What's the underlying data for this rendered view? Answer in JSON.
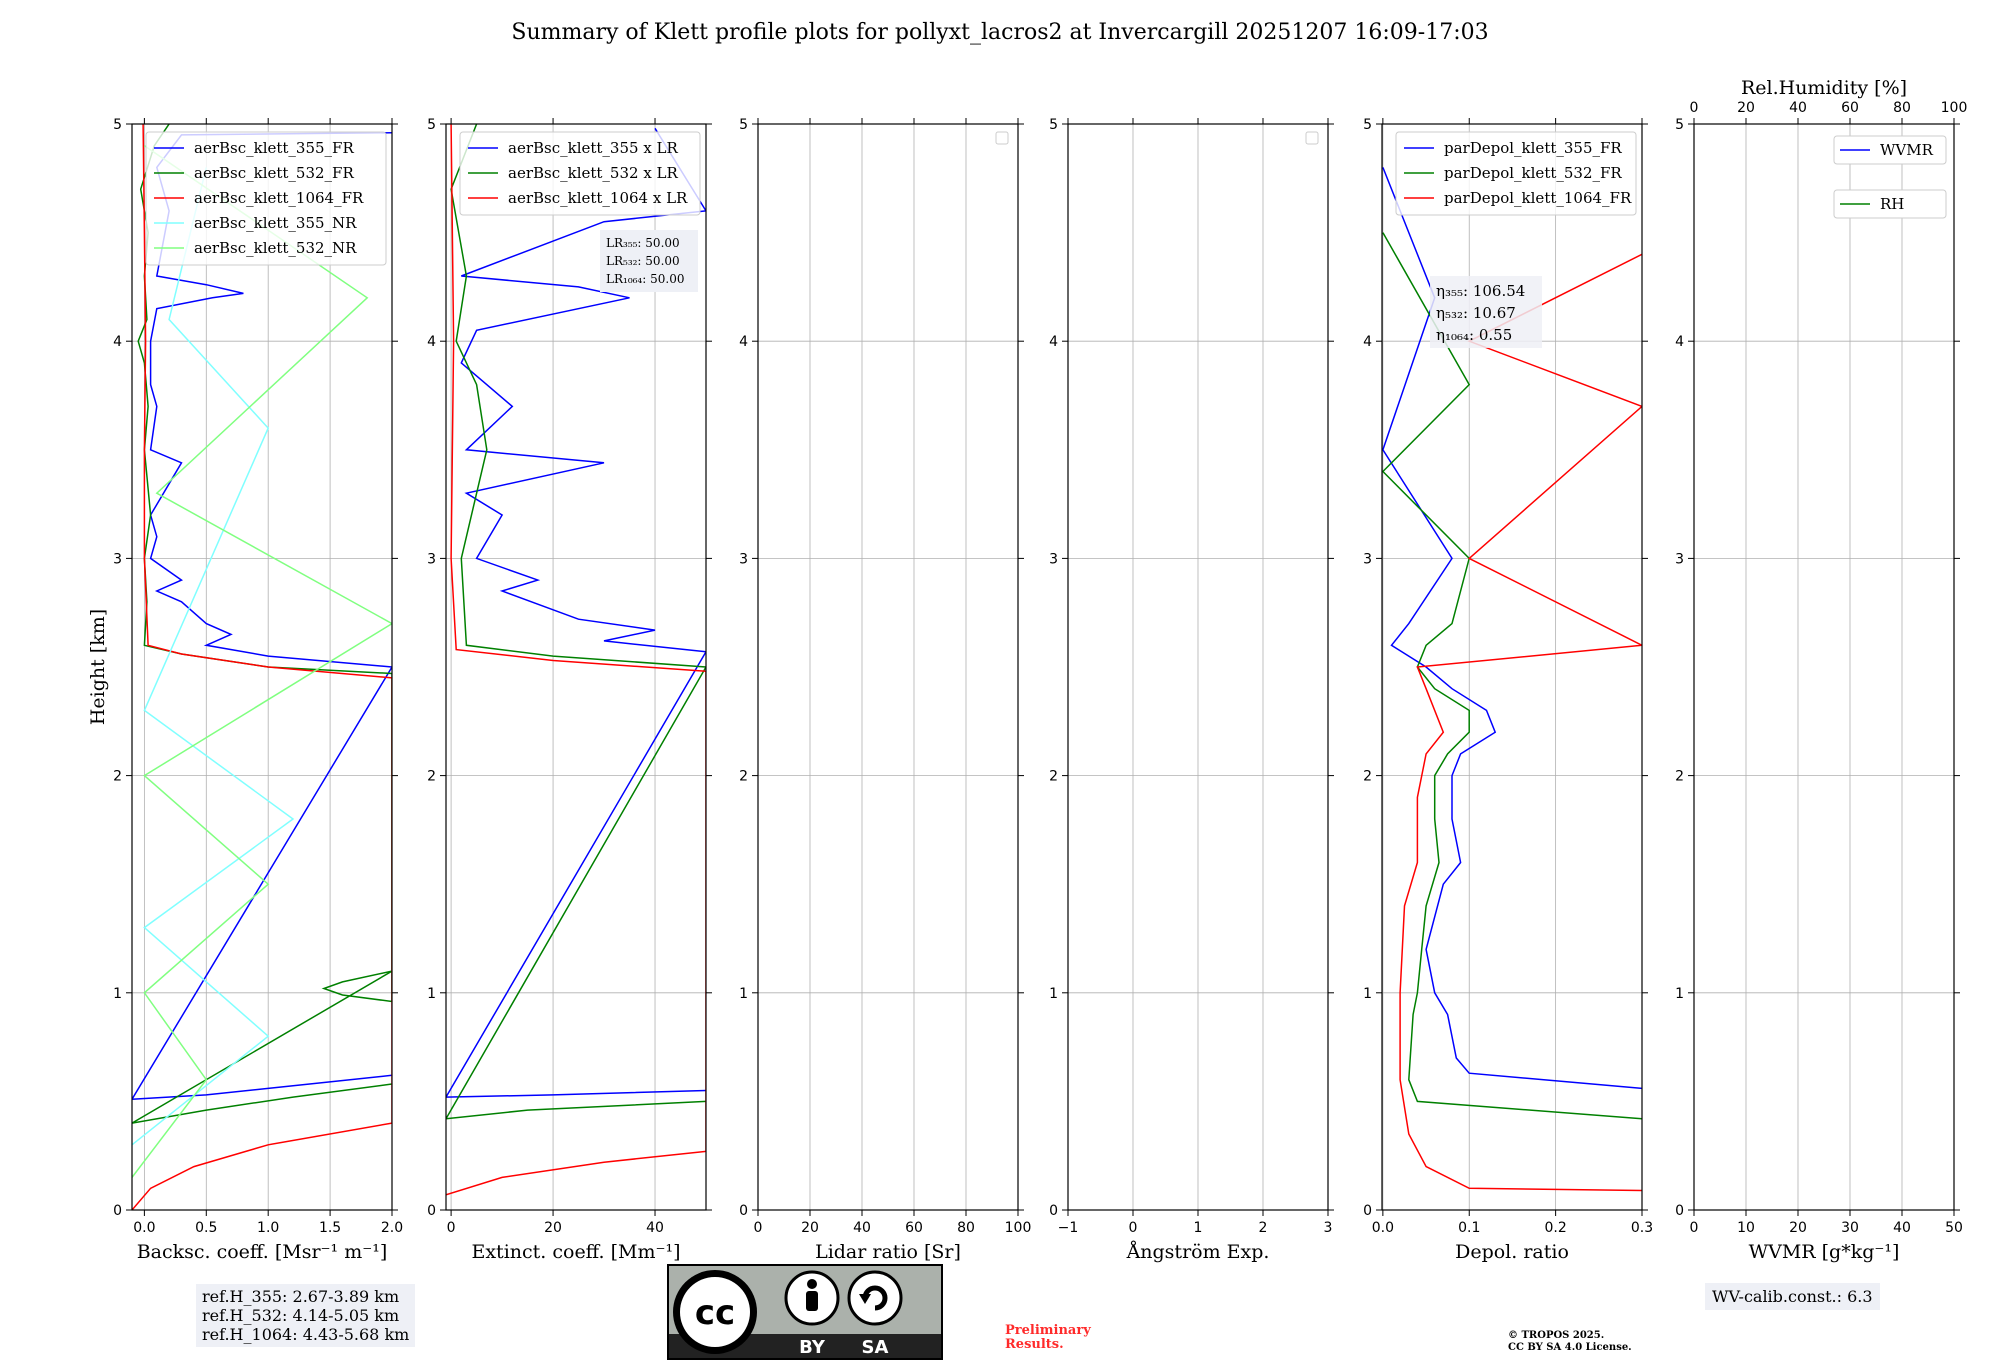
{
  "title": "Summary of Klett profile plots for pollyxt_lacros2 at Invercargill 20251207 16:09-17:03",
  "chart_data": [
    {
      "type": "line",
      "id": "backscatter",
      "xlabel": "Backsc. coeff. [Msr⁻¹ m⁻¹]",
      "ylabel": "Height [km]",
      "xlim": [
        -0.1,
        2.0
      ],
      "ylim": [
        0,
        5
      ],
      "xticks": [
        "0.0",
        "0.5",
        "1.0",
        "1.5",
        "2.0"
      ],
      "xtick_values": [
        0,
        0.5,
        1.0,
        1.5,
        2.0
      ],
      "yticks": [
        "0",
        "1",
        "2",
        "3",
        "4",
        "5"
      ],
      "grid": true,
      "legend": [
        "aerBsc_klett_355_FR",
        "aerBsc_klett_532_FR",
        "aerBsc_klett_1064_FR",
        "aerBsc_klett_355_NR",
        "aerBsc_klett_532_NR"
      ],
      "legend_colors": [
        "#0000ff",
        "#008000",
        "#ff0000",
        "#80ffff",
        "#80ff80"
      ],
      "legend_placement": "top-right",
      "series": [
        {
          "name": "aerBsc_klett_355_FR",
          "color": "#0000ff",
          "points": [
            [
              2.0,
              0.62
            ],
            [
              1.0,
              0.56
            ],
            [
              0.5,
              0.53
            ],
            [
              -0.1,
              0.51
            ],
            [
              2.0,
              2.5
            ],
            [
              1.0,
              2.55
            ],
            [
              0.5,
              2.6
            ],
            [
              0.7,
              2.65
            ],
            [
              0.5,
              2.7
            ],
            [
              0.3,
              2.8
            ],
            [
              0.1,
              2.85
            ],
            [
              0.3,
              2.9
            ],
            [
              0.05,
              3.0
            ],
            [
              0.1,
              3.1
            ],
            [
              0.05,
              3.2
            ],
            [
              0.3,
              3.44
            ],
            [
              0.05,
              3.5
            ],
            [
              0.1,
              3.7
            ],
            [
              0.05,
              3.8
            ],
            [
              0.05,
              4.0
            ],
            [
              0.1,
              4.15
            ],
            [
              0.55,
              4.2
            ],
            [
              0.8,
              4.22
            ],
            [
              0.5,
              4.26
            ],
            [
              0.1,
              4.3
            ],
            [
              0.2,
              4.6
            ],
            [
              0.1,
              4.8
            ],
            [
              0.3,
              4.95
            ],
            [
              2.0,
              4.96
            ]
          ]
        },
        {
          "name": "aerBsc_klett_532_FR",
          "color": "#008000",
          "points": [
            [
              2.0,
              0.58
            ],
            [
              1.2,
              0.52
            ],
            [
              0.5,
              0.46
            ],
            [
              -0.1,
              0.4
            ],
            [
              2.0,
              1.1
            ],
            [
              1.6,
              1.05
            ],
            [
              1.45,
              1.02
            ],
            [
              1.6,
              0.99
            ],
            [
              2.0,
              0.96
            ],
            [
              2.0,
              2.47
            ],
            [
              1.0,
              2.5
            ],
            [
              0.3,
              2.56
            ],
            [
              0.0,
              2.6
            ],
            [
              0.02,
              2.8
            ],
            [
              0.0,
              3.0
            ],
            [
              0.05,
              3.2
            ],
            [
              0.0,
              3.5
            ],
            [
              0.03,
              3.7
            ],
            [
              0.0,
              3.9
            ],
            [
              -0.05,
              4.0
            ],
            [
              0.02,
              4.1
            ],
            [
              0.0,
              4.3
            ],
            [
              0.03,
              4.5
            ],
            [
              -0.03,
              4.7
            ],
            [
              0.08,
              4.9
            ],
            [
              0.2,
              5.0
            ]
          ]
        },
        {
          "name": "aerBsc_klett_1064_FR",
          "color": "#ff0000",
          "points": [
            [
              -0.1,
              0.0
            ],
            [
              0.05,
              0.1
            ],
            [
              0.4,
              0.2
            ],
            [
              1.0,
              0.3
            ],
            [
              2.0,
              0.4
            ],
            [
              2.0,
              2.45
            ],
            [
              1.0,
              2.5
            ],
            [
              0.3,
              2.56
            ],
            [
              0.03,
              2.6
            ],
            [
              0.0,
              3.0
            ],
            [
              0.0,
              3.5
            ],
            [
              0.01,
              4.0
            ],
            [
              0.0,
              4.5
            ],
            [
              -0.01,
              5.0
            ]
          ]
        },
        {
          "name": "aerBsc_klett_355_NR",
          "color": "#80ffff",
          "points": [
            [
              -0.1,
              0.3
            ],
            [
              1.0,
              0.8
            ],
            [
              0.0,
              1.3
            ],
            [
              1.2,
              1.8
            ],
            [
              0.0,
              2.3
            ],
            [
              1.0,
              3.6
            ],
            [
              0.2,
              4.1
            ],
            [
              0.5,
              4.8
            ]
          ]
        },
        {
          "name": "aerBsc_klett_532_NR",
          "color": "#80ff80",
          "points": [
            [
              -0.1,
              0.15
            ],
            [
              0.5,
              0.6
            ],
            [
              0.0,
              1.0
            ],
            [
              1.0,
              1.5
            ],
            [
              0.0,
              2.0
            ],
            [
              2.0,
              2.7
            ],
            [
              0.1,
              3.3
            ],
            [
              1.8,
              4.2
            ],
            [
              0.0,
              4.9
            ]
          ]
        }
      ],
      "annotations": [
        "ref.H_355: 2.67-3.89 km",
        "ref.H_532: 4.14-5.05 km",
        "ref.H_1064: 4.43-5.68 km"
      ]
    },
    {
      "type": "line",
      "id": "extinction",
      "xlabel": "Extinct. coeff. [Mm⁻¹]",
      "xlim": [
        -1,
        50
      ],
      "ylim": [
        0,
        5
      ],
      "xticks": [
        "0",
        "20",
        "40"
      ],
      "xtick_values": [
        0,
        20,
        40
      ],
      "yticks": [
        "0",
        "1",
        "2",
        "3",
        "4",
        "5"
      ],
      "grid": true,
      "legend": [
        "aerBsc_klett_355 x LR",
        "aerBsc_klett_532 x LR",
        "aerBsc_klett_1064 x LR"
      ],
      "legend_colors": [
        "#0000ff",
        "#008000",
        "#ff0000"
      ],
      "legend_placement": "top-right",
      "lidar_ratio_labels": [
        "LR₃₅₅: 50.00",
        "LR₅₃₂: 50.00",
        "LR₁₀₆₄: 50.00"
      ],
      "series": [
        {
          "name": "aerBsc_klett_355 x LR",
          "color": "#0000ff",
          "points": [
            [
              50,
              0.55
            ],
            [
              20,
              0.53
            ],
            [
              -1,
              0.52
            ],
            [
              50,
              2.57
            ],
            [
              30,
              2.62
            ],
            [
              40,
              2.67
            ],
            [
              25,
              2.72
            ],
            [
              10,
              2.85
            ],
            [
              17,
              2.9
            ],
            [
              5,
              3.0
            ],
            [
              10,
              3.2
            ],
            [
              3,
              3.3
            ],
            [
              30,
              3.44
            ],
            [
              3,
              3.5
            ],
            [
              12,
              3.7
            ],
            [
              2,
              3.9
            ],
            [
              5,
              4.05
            ],
            [
              35,
              4.2
            ],
            [
              25,
              4.25
            ],
            [
              2,
              4.3
            ],
            [
              30,
              4.55
            ],
            [
              50,
              4.6
            ],
            [
              40,
              4.98
            ]
          ]
        },
        {
          "name": "aerBsc_klett_532 x LR",
          "color": "#008000",
          "points": [
            [
              50,
              0.5
            ],
            [
              15,
              0.46
            ],
            [
              -1,
              0.42
            ],
            [
              50,
              2.5
            ],
            [
              20,
              2.55
            ],
            [
              3,
              2.6
            ],
            [
              2,
              3.0
            ],
            [
              7,
              3.5
            ],
            [
              5,
              3.8
            ],
            [
              1,
              4.0
            ],
            [
              3,
              4.3
            ],
            [
              0,
              4.7
            ],
            [
              5,
              5.0
            ]
          ]
        },
        {
          "name": "aerBsc_klett_1064 x LR",
          "color": "#ff0000",
          "points": [
            [
              -1,
              0.07
            ],
            [
              10,
              0.15
            ],
            [
              30,
              0.22
            ],
            [
              50,
              0.27
            ],
            [
              50,
              2.48
            ],
            [
              20,
              2.53
            ],
            [
              1,
              2.58
            ],
            [
              0,
              3.0
            ],
            [
              0.5,
              4.0
            ],
            [
              0,
              5.0
            ]
          ]
        }
      ]
    },
    {
      "type": "line",
      "id": "lidar-ratio",
      "xlabel": "Lidar ratio [Sr]",
      "xlim": [
        0,
        100
      ],
      "ylim": [
        0,
        5
      ],
      "xticks": [
        "0",
        "20",
        "40",
        "60",
        "80",
        "100"
      ],
      "xtick_values": [
        0,
        20,
        40,
        60,
        80,
        100
      ],
      "yticks": [
        "0",
        "1",
        "2",
        "3",
        "4",
        "5"
      ],
      "grid": true,
      "series": []
    },
    {
      "type": "line",
      "id": "angstrom",
      "xlabel": "Ångström Exp.",
      "xlim": [
        -1,
        3
      ],
      "ylim": [
        0,
        5
      ],
      "xticks": [
        "−1",
        "0",
        "1",
        "2",
        "3"
      ],
      "xtick_values": [
        -1,
        0,
        1,
        2,
        3
      ],
      "yticks": [
        "0",
        "1",
        "2",
        "3",
        "4",
        "5"
      ],
      "grid": true,
      "series": []
    },
    {
      "type": "line",
      "id": "depol",
      "xlabel": "Depol. ratio",
      "xlim": [
        -0.001,
        0.3
      ],
      "ylim": [
        0,
        5
      ],
      "xticks": [
        "0.0",
        "0.1",
        "0.2",
        "0.3"
      ],
      "xtick_values": [
        0,
        0.1,
        0.2,
        0.3
      ],
      "yticks": [
        "0",
        "1",
        "2",
        "3",
        "4",
        "5"
      ],
      "grid": true,
      "legend": [
        "parDepol_klett_355_FR",
        "parDepol_klett_532_FR",
        "parDepol_klett_1064_FR"
      ],
      "legend_colors": [
        "#0000ff",
        "#008000",
        "#ff0000"
      ],
      "legend_placement": "top-right",
      "eta_labels": [
        "η₃₅₅: 106.54",
        "η₅₃₂: 10.67",
        "η₁₀₆₄: 0.55"
      ],
      "series": [
        {
          "name": "parDepol_klett_355_FR",
          "color": "#0000ff",
          "points": [
            [
              0.3,
              0.56
            ],
            [
              0.1,
              0.63
            ],
            [
              0.085,
              0.7
            ],
            [
              0.075,
              0.9
            ],
            [
              0.06,
              1.0
            ],
            [
              0.05,
              1.2
            ],
            [
              0.07,
              1.5
            ],
            [
              0.09,
              1.6
            ],
            [
              0.08,
              1.8
            ],
            [
              0.08,
              2.0
            ],
            [
              0.09,
              2.1
            ],
            [
              0.13,
              2.2
            ],
            [
              0.12,
              2.3
            ],
            [
              0.08,
              2.4
            ],
            [
              0.05,
              2.5
            ],
            [
              0.01,
              2.6
            ],
            [
              0.03,
              2.7
            ],
            [
              0.08,
              3.0
            ],
            [
              0.0,
              3.5
            ],
            [
              0.06,
              4.2
            ],
            [
              0.0,
              4.8
            ]
          ]
        },
        {
          "name": "parDepol_klett_532_FR",
          "color": "#008000",
          "points": [
            [
              0.3,
              0.42
            ],
            [
              0.04,
              0.5
            ],
            [
              0.03,
              0.6
            ],
            [
              0.035,
              0.9
            ],
            [
              0.04,
              1.0
            ],
            [
              0.045,
              1.2
            ],
            [
              0.05,
              1.4
            ],
            [
              0.065,
              1.6
            ],
            [
              0.06,
              1.8
            ],
            [
              0.06,
              2.0
            ],
            [
              0.075,
              2.1
            ],
            [
              0.1,
              2.2
            ],
            [
              0.1,
              2.3
            ],
            [
              0.06,
              2.4
            ],
            [
              0.04,
              2.5
            ],
            [
              0.05,
              2.6
            ],
            [
              0.08,
              2.7
            ],
            [
              0.1,
              3.0
            ],
            [
              0.0,
              3.4
            ],
            [
              0.1,
              3.8
            ],
            [
              0.0,
              4.5
            ]
          ]
        },
        {
          "name": "parDepol_klett_1064_FR",
          "color": "#ff0000",
          "points": [
            [
              0.3,
              0.09
            ],
            [
              0.1,
              0.1
            ],
            [
              0.05,
              0.2
            ],
            [
              0.03,
              0.35
            ],
            [
              0.02,
              0.6
            ],
            [
              0.02,
              1.0
            ],
            [
              0.025,
              1.4
            ],
            [
              0.04,
              1.6
            ],
            [
              0.04,
              1.9
            ],
            [
              0.05,
              2.1
            ],
            [
              0.07,
              2.2
            ],
            [
              0.05,
              2.4
            ],
            [
              0.04,
              2.5
            ],
            [
              0.3,
              2.6
            ],
            [
              0.1,
              3.0
            ],
            [
              0.3,
              3.7
            ],
            [
              0.1,
              4.0
            ],
            [
              0.3,
              4.4
            ]
          ]
        }
      ]
    },
    {
      "type": "line",
      "id": "wvmr",
      "xlabel": "WVMR [g*kg⁻¹]",
      "xlim": [
        0,
        50
      ],
      "ylim": [
        0,
        5
      ],
      "xticks": [
        "0",
        "10",
        "20",
        "30",
        "40",
        "50"
      ],
      "xtick_values": [
        0,
        10,
        20,
        30,
        40,
        50
      ],
      "yticks": [
        "0",
        "1",
        "2",
        "3",
        "4",
        "5"
      ],
      "top_xlabel": "Rel.Humidity [%]",
      "top_xticks": [
        "0",
        "20",
        "40",
        "60",
        "80",
        "100"
      ],
      "grid": true,
      "legend": [
        "WVMR",
        "RH"
      ],
      "legend_colors": [
        "#0000ff",
        "#008000"
      ],
      "legend_placement": "top-right",
      "series": []
    }
  ],
  "footer": {
    "ref_heights": [
      "ref.H_355: 2.67-3.89 km",
      "ref.H_532: 4.14-5.05 km",
      "ref.H_1064: 4.43-5.68 km"
    ],
    "license_badge": {
      "left": "BY",
      "right": "SA"
    },
    "preliminary": [
      "Preliminary",
      "Results."
    ],
    "copyright": [
      "© TROPOS 2025.",
      "CC BY SA 4.0 License."
    ],
    "wv_calib": "WV-calib.const.: 6.3"
  }
}
